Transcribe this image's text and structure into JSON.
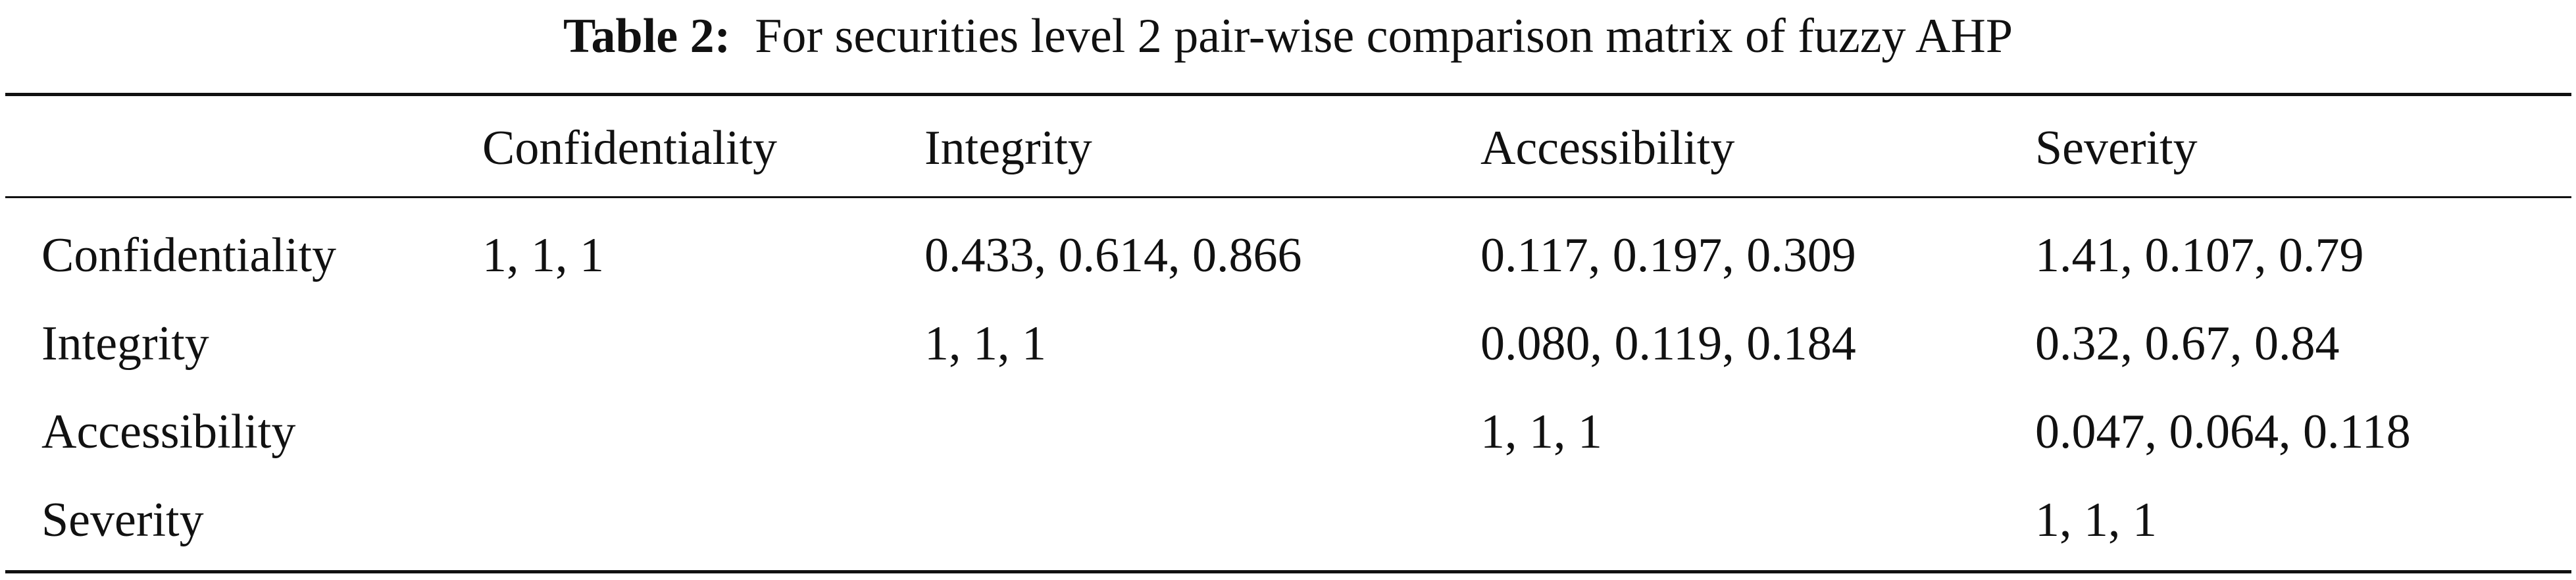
{
  "title": {
    "label": "Table 2:",
    "text": "For securities level 2 pair-wise comparison matrix of fuzzy AHP"
  },
  "table": {
    "columns": [
      "Confidentiality",
      "Integrity",
      "Accessibility",
      "Severity"
    ],
    "rows": [
      [
        "Confidentiality",
        "1, 1, 1",
        "0.433, 0.614, 0.866",
        "0.117, 0.197, 0.309",
        "1.41, 0.107, 0.79"
      ],
      [
        "Integrity",
        null,
        "1, 1, 1",
        "0.080, 0.119, 0.184",
        "0.32, 0.67, 0.84"
      ],
      [
        "Accessibility",
        null,
        null,
        "1, 1, 1",
        "0.047, 0.064, 0.118"
      ],
      [
        "Severity",
        null,
        null,
        null,
        "1, 1, 1"
      ]
    ]
  }
}
